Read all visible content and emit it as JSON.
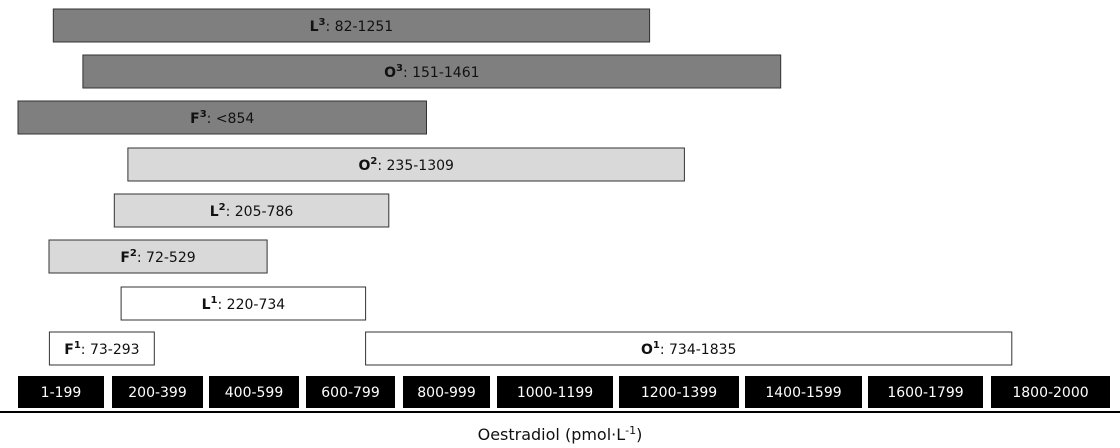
{
  "chart_data": {
    "type": "range-bar",
    "xlabel": "Oestradiol (pmol·L",
    "xlabel_sup": "-1",
    "xlabel_end": ")",
    "bins": [
      "1-199",
      "200-399",
      "400-599",
      "600-799",
      "800-999",
      "1000-1199",
      "1200-1399",
      "1400-1599",
      "1600-1799",
      "1800-2000"
    ],
    "series": [
      {
        "letter": "L",
        "sup": "3",
        "range": "82-1251",
        "start": 82,
        "end": 1251,
        "fill": "#7f7f7f"
      },
      {
        "letter": "O",
        "sup": "3",
        "range": "151-1461",
        "start": 151,
        "end": 1461,
        "fill": "#7f7f7f"
      },
      {
        "letter": "F",
        "sup": "3",
        "range": "<854",
        "start": 0,
        "end": 854,
        "fill": "#7f7f7f"
      },
      {
        "letter": "O",
        "sup": "2",
        "range": "235-1309",
        "start": 235,
        "end": 1309,
        "fill": "#d9d9d9"
      },
      {
        "letter": "L",
        "sup": "2",
        "range": "205-786",
        "start": 205,
        "end": 786,
        "fill": "#d9d9d9"
      },
      {
        "letter": "F",
        "sup": "2",
        "range": "72-529",
        "start": 72,
        "end": 529,
        "fill": "#d9d9d9"
      },
      {
        "letter": "L",
        "sup": "1",
        "range": "220-734",
        "start": 220,
        "end": 734,
        "fill": "#ffffff"
      },
      {
        "letter": "F",
        "sup": "1",
        "range": "73-293",
        "start": 73,
        "end": 293,
        "fill": "#ffffff"
      },
      {
        "letter": "O",
        "sup": "1",
        "range": "734-1835",
        "start": 734,
        "end": 1835,
        "fill": "#ffffff"
      }
    ]
  }
}
